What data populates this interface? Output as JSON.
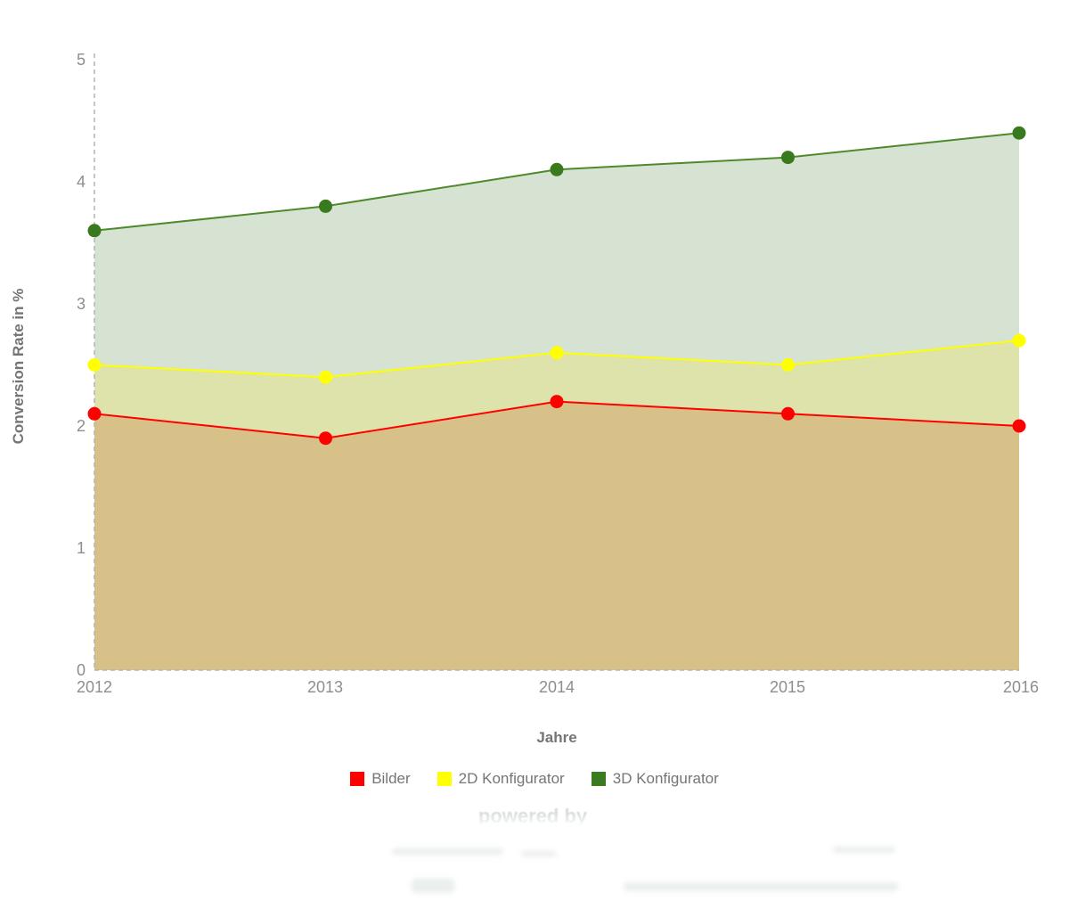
{
  "watermark": {
    "powered_by": "powered by"
  },
  "chart_data": {
    "type": "area",
    "categories": [
      "2012",
      "2013",
      "2014",
      "2015",
      "2016"
    ],
    "series": [
      {
        "name": "Bilder",
        "values": [
          2.1,
          1.9,
          2.2,
          2.1,
          2.0
        ],
        "color": "#ff0000",
        "point_color": "#ff0000",
        "area_color": "#d7c189",
        "legend_color": "#ff0000"
      },
      {
        "name": "2D Konfigurator",
        "values": [
          2.5,
          2.4,
          2.6,
          2.5,
          2.7
        ],
        "color": "#ffff00",
        "point_color": "#ffff00",
        "area_color": "#dde3ab",
        "legend_color": "#ffff00"
      },
      {
        "name": "3D Konfigurator",
        "values": [
          3.6,
          3.8,
          4.1,
          4.2,
          4.4
        ],
        "color": "#4e8a2c",
        "point_color": "#3a7a1e",
        "area_color": "#d7e3d2",
        "legend_color": "#3a7a21"
      }
    ],
    "xlabel": "Jahre",
    "ylabel": "Conversion Rate in %",
    "ylim": [
      0,
      5
    ],
    "yticks": [
      0,
      1,
      2,
      3,
      4,
      5
    ],
    "grid": false,
    "legend_position": "bottom",
    "axis_style": "dashed-gray"
  }
}
